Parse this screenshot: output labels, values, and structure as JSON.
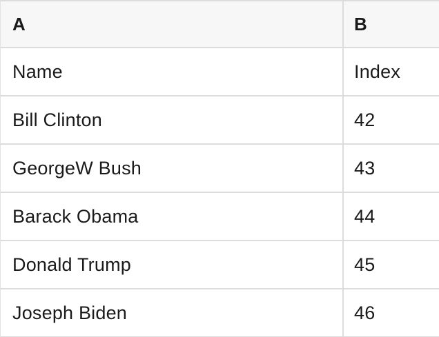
{
  "table": {
    "header": {
      "col_a": "A",
      "col_b": "B"
    },
    "rows": [
      {
        "a": "Name",
        "b": "Index"
      },
      {
        "a": "Bill Clinton",
        "b": "42"
      },
      {
        "a": "GeorgeW Bush",
        "b": "43"
      },
      {
        "a": "Barack Obama",
        "b": "44"
      },
      {
        "a": "Donald Trump",
        "b": "45"
      },
      {
        "a": "Joseph Biden",
        "b": "46"
      }
    ]
  },
  "colors": {
    "header_bg": "#f7f7f7",
    "border": "#dcdcdc",
    "text": "#1a1a1a",
    "row_bg": "#ffffff"
  }
}
